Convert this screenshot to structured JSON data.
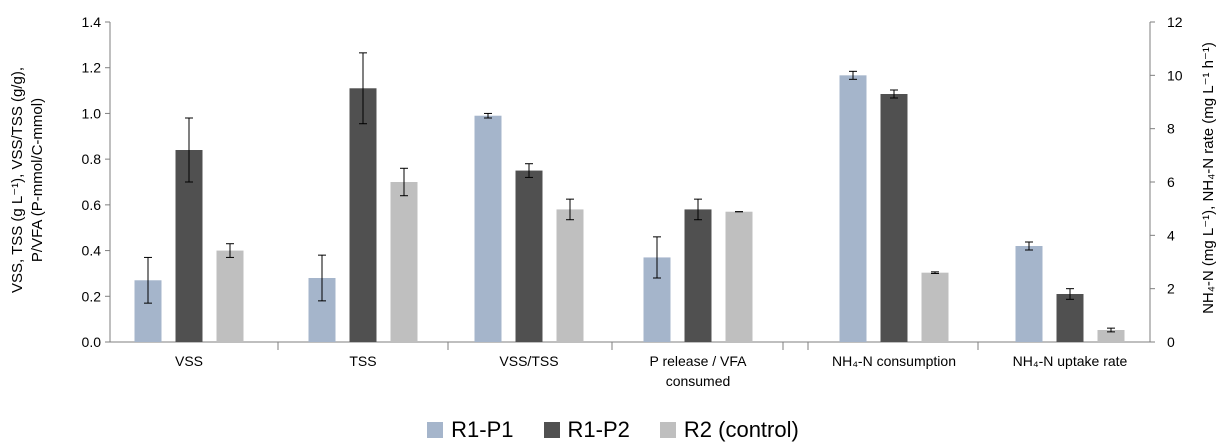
{
  "chart_data": {
    "type": "bar",
    "colors": [
      "#A5B5CB",
      "#505050",
      "#BFBFBF"
    ],
    "series": [
      {
        "name": "R1-P1",
        "values": [
          0.27,
          0.28,
          0.99,
          0.37,
          10.0,
          3.6
        ],
        "errors": [
          0.1,
          0.1,
          0.01,
          0.09,
          0.15,
          0.15
        ]
      },
      {
        "name": "R1-P2",
        "values": [
          0.84,
          1.11,
          0.75,
          0.58,
          9.3,
          1.8
        ],
        "errors": [
          0.14,
          0.155,
          0.03,
          0.045,
          0.15,
          0.2
        ]
      },
      {
        "name": "R2 (control)",
        "values": [
          0.4,
          0.7,
          0.58,
          0.57,
          2.6,
          0.45
        ],
        "errors": [
          0.03,
          0.06,
          0.045,
          0.0,
          0.03,
          0.07
        ]
      }
    ],
    "categories": [
      "VSS",
      "TSS",
      "VSS/TSS",
      "P release / VFA consumed",
      "NH4-N consumption",
      "NH4-N uptake rate"
    ],
    "category_lines": [
      [
        "VSS"
      ],
      [
        "TSS"
      ],
      [
        "VSS/TSS"
      ],
      [
        "P release / VFA",
        "consumed"
      ],
      [
        "NH₄-N consumption"
      ],
      [
        "NH₄-N uptake rate"
      ]
    ],
    "left_axis": {
      "ylim": [
        0,
        1.4
      ],
      "ticks": [
        "0.0",
        "0.2",
        "0.4",
        "0.6",
        "0.8",
        "1.0",
        "1.2",
        "1.4"
      ],
      "label_line1": "VSS, TSS (g L⁻¹), VSS/TSS (g/g),",
      "label_line2": "P/VFA (P-mmol/C-mmol)"
    },
    "right_axis": {
      "ylim": [
        0,
        12
      ],
      "ticks": [
        "0",
        "2",
        "4",
        "6",
        "8",
        "10",
        "12"
      ],
      "label": "NH₄-N (mg L⁻¹), NH₄-N rate (mg L⁻¹ h⁻¹)"
    },
    "right_axis_categories": [
      4,
      5
    ],
    "legend_position": "bottom",
    "grid": false
  }
}
